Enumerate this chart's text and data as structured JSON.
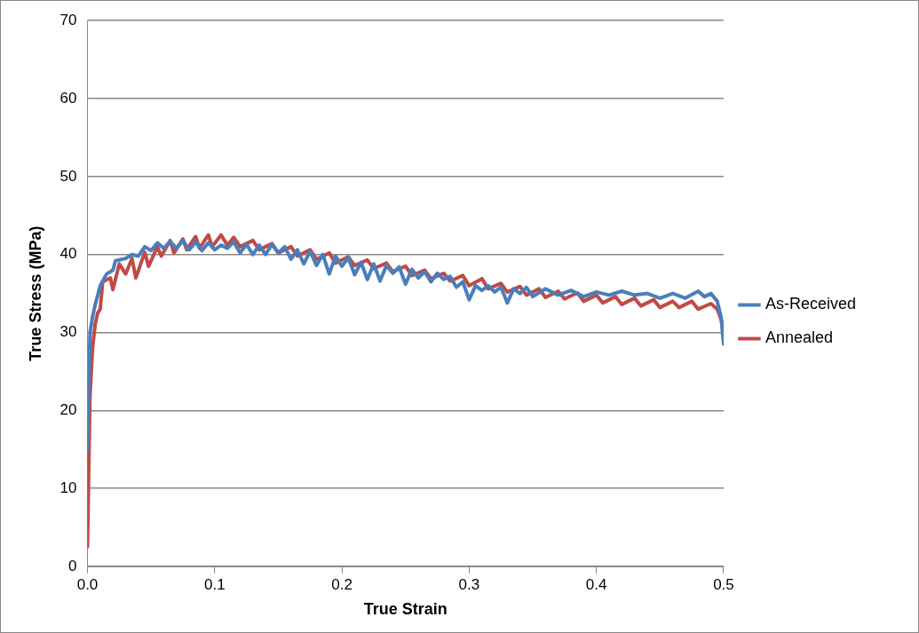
{
  "chart_data": {
    "type": "line",
    "xlabel": "True Strain",
    "ylabel": "True Stress (MPa)",
    "xlim": [
      0,
      0.5
    ],
    "xticks": [
      {
        "value": 0,
        "label": "0.0"
      },
      0.1,
      0.2,
      0.3,
      0.4,
      0.5
    ],
    "ylim": [
      0,
      70
    ],
    "yticks": [
      0,
      10,
      20,
      30,
      40,
      50,
      60,
      70
    ],
    "grid": "y",
    "legend": "right",
    "marker": "none",
    "line_style": "solid",
    "series": [
      {
        "name": "As-Received",
        "color": "#4a7ebb",
        "x": [
          0,
          0.002,
          0.004,
          0.006,
          0.01,
          0.015,
          0.02,
          0.022,
          0.03,
          0.035,
          0.04,
          0.045,
          0.05,
          0.055,
          0.06,
          0.065,
          0.07,
          0.075,
          0.08,
          0.085,
          0.09,
          0.095,
          0.1,
          0.105,
          0.11,
          0.115,
          0.12,
          0.125,
          0.13,
          0.135,
          0.14,
          0.145,
          0.15,
          0.155,
          0.16,
          0.165,
          0.17,
          0.175,
          0.18,
          0.185,
          0.19,
          0.195,
          0.2,
          0.205,
          0.21,
          0.215,
          0.22,
          0.225,
          0.23,
          0.235,
          0.24,
          0.245,
          0.25,
          0.255,
          0.26,
          0.265,
          0.27,
          0.275,
          0.28,
          0.285,
          0.29,
          0.295,
          0.3,
          0.305,
          0.31,
          0.315,
          0.32,
          0.325,
          0.33,
          0.335,
          0.34,
          0.345,
          0.35,
          0.36,
          0.37,
          0.38,
          0.39,
          0.4,
          0.41,
          0.42,
          0.43,
          0.44,
          0.45,
          0.46,
          0.47,
          0.48,
          0.485,
          0.49,
          0.495,
          0.498,
          0.5
        ],
        "values": [
          15,
          30,
          32,
          33.5,
          36,
          37.5,
          38,
          39.2,
          39.5,
          40,
          39.8,
          41,
          40.5,
          41.5,
          40.8,
          41.7,
          40.8,
          41.8,
          40.6,
          41.6,
          40.5,
          41.5,
          40.6,
          41.2,
          40.8,
          41.6,
          40.2,
          41.3,
          40,
          41.2,
          40,
          41.3,
          40.2,
          41,
          39.4,
          40.6,
          38.8,
          40.4,
          38.6,
          40,
          37.5,
          39.8,
          38.5,
          39.6,
          37.4,
          39,
          36.8,
          38.8,
          36.6,
          38.6,
          37.6,
          38.4,
          36.2,
          38.1,
          37,
          37.8,
          36.5,
          37.6,
          36.8,
          37.2,
          35.8,
          36.5,
          34.2,
          36,
          35.4,
          36,
          35.2,
          35.8,
          33.8,
          35.6,
          35,
          35.8,
          34.6,
          35.6,
          34.8,
          35.4,
          34.6,
          35.2,
          34.8,
          35.3,
          34.8,
          35,
          34.4,
          35,
          34.4,
          35.3,
          34.6,
          35,
          34,
          32,
          28.5
        ]
      },
      {
        "name": "Annealed",
        "color": "#be4b48",
        "x": [
          0,
          0.002,
          0.004,
          0.006,
          0.008,
          0.01,
          0.012,
          0.018,
          0.02,
          0.025,
          0.03,
          0.035,
          0.038,
          0.045,
          0.048,
          0.055,
          0.058,
          0.065,
          0.068,
          0.075,
          0.078,
          0.085,
          0.088,
          0.095,
          0.098,
          0.105,
          0.11,
          0.115,
          0.12,
          0.13,
          0.135,
          0.145,
          0.15,
          0.16,
          0.165,
          0.175,
          0.18,
          0.19,
          0.195,
          0.205,
          0.21,
          0.22,
          0.225,
          0.235,
          0.24,
          0.25,
          0.255,
          0.265,
          0.27,
          0.28,
          0.285,
          0.295,
          0.3,
          0.31,
          0.315,
          0.325,
          0.33,
          0.34,
          0.345,
          0.355,
          0.36,
          0.37,
          0.375,
          0.385,
          0.39,
          0.4,
          0.405,
          0.415,
          0.42,
          0.43,
          0.435,
          0.445,
          0.45,
          0.46,
          0.465,
          0.475,
          0.48,
          0.49,
          0.495,
          0.5
        ],
        "values": [
          2.5,
          22,
          28,
          31,
          32.5,
          33,
          36.5,
          37,
          35.5,
          38.8,
          37.5,
          39.5,
          37,
          40.3,
          38.5,
          41,
          39.8,
          41.8,
          40.2,
          42,
          40.6,
          42.3,
          40.8,
          42.5,
          41,
          42.5,
          41.2,
          42.2,
          41,
          41.8,
          40.6,
          41.4,
          40.2,
          41,
          39.8,
          40.6,
          39.4,
          40.2,
          38.9,
          39.7,
          38.6,
          39.3,
          38.2,
          38.9,
          37.8,
          38.5,
          37.3,
          38,
          36.9,
          37.6,
          36.6,
          37.3,
          36,
          36.9,
          35.6,
          36.3,
          35.2,
          35.9,
          34.8,
          35.6,
          34.5,
          35.3,
          34.3,
          35.1,
          34,
          34.8,
          33.8,
          34.6,
          33.6,
          34.4,
          33.4,
          34.2,
          33.2,
          34,
          33.2,
          34,
          33,
          33.7,
          33,
          30.8
        ]
      }
    ]
  }
}
